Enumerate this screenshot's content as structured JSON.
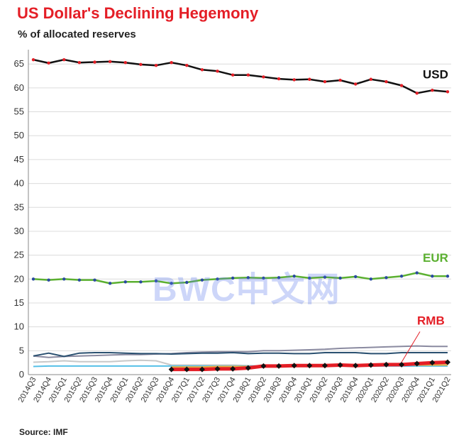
{
  "title": "US Dollar's Declining Hegemony",
  "subtitle": "% of allocated reserves",
  "source": "Source: IMF",
  "watermark": "BWC中文网",
  "chart_data": {
    "type": "line",
    "title": "US Dollar's Declining Hegemony",
    "ylabel": "% of allocated reserves",
    "xlabel": "",
    "ylim": [
      0,
      68
    ],
    "yticks": [
      0,
      5,
      10,
      15,
      20,
      25,
      30,
      35,
      40,
      45,
      50,
      55,
      60,
      65
    ],
    "grid": true,
    "categories": [
      "2014Q3",
      "2014Q4",
      "2015Q1",
      "2015Q2",
      "2015Q3",
      "2015Q4",
      "2016Q1",
      "2016Q2",
      "2016Q3",
      "2016Q4",
      "2017Q1",
      "2017Q2",
      "2017Q3",
      "2017Q4",
      "2018Q1",
      "2018Q2",
      "2018Q3",
      "2018Q4",
      "2019Q1",
      "2019Q2",
      "2019Q3",
      "2019Q4",
      "2020Q1",
      "2020Q2",
      "2020Q3",
      "2020Q4",
      "2021Q1",
      "2021Q2"
    ],
    "series": [
      {
        "name": "USD",
        "color": "#111111",
        "marker": "#e41e26",
        "labeled": true,
        "values": [
          65.9,
          65.2,
          65.9,
          65.3,
          65.4,
          65.5,
          65.3,
          64.9,
          64.7,
          65.3,
          64.7,
          63.8,
          63.5,
          62.7,
          62.7,
          62.3,
          61.9,
          61.7,
          61.8,
          61.3,
          61.6,
          60.8,
          61.8,
          61.3,
          60.5,
          58.9,
          59.5,
          59.2
        ]
      },
      {
        "name": "EUR",
        "color": "#5bb030",
        "marker": "#2a4aa0",
        "labeled": true,
        "values": [
          20.0,
          19.8,
          20.0,
          19.8,
          19.8,
          19.1,
          19.4,
          19.4,
          19.6,
          19.1,
          19.3,
          19.8,
          20.0,
          20.2,
          20.3,
          20.2,
          20.3,
          20.6,
          20.2,
          20.4,
          20.2,
          20.5,
          20.0,
          20.3,
          20.6,
          21.3,
          20.6,
          20.6
        ]
      },
      {
        "name": "RMB",
        "color": "#e41e26",
        "marker": "#111111",
        "labeled": true,
        "start_index": 9,
        "values": [
          null,
          null,
          null,
          null,
          null,
          null,
          null,
          null,
          null,
          1.1,
          1.1,
          1.1,
          1.2,
          1.2,
          1.4,
          1.8,
          1.8,
          1.9,
          1.9,
          1.9,
          2.0,
          1.9,
          2.0,
          2.1,
          2.1,
          2.3,
          2.5,
          2.6
        ]
      },
      {
        "name": "",
        "color": "#8a8aa0",
        "values": [
          3.9,
          3.6,
          3.8,
          3.9,
          4.0,
          4.1,
          4.2,
          4.2,
          4.3,
          4.4,
          4.6,
          4.7,
          4.8,
          4.8,
          4.8,
          5.0,
          5.0,
          5.1,
          5.2,
          5.3,
          5.5,
          5.6,
          5.7,
          5.8,
          5.9,
          6.0,
          5.9,
          5.9
        ]
      },
      {
        "name": "",
        "color": "#2a5070",
        "values": [
          3.9,
          4.5,
          3.8,
          4.5,
          4.6,
          4.6,
          4.5,
          4.4,
          4.4,
          4.3,
          4.4,
          4.5,
          4.5,
          4.6,
          4.4,
          4.5,
          4.5,
          4.4,
          4.4,
          4.6,
          4.6,
          4.6,
          4.4,
          4.4,
          4.6,
          4.6,
          4.6,
          4.6
        ]
      },
      {
        "name": "",
        "color": "#c8c8c8",
        "values": [
          2.6,
          2.7,
          2.9,
          2.7,
          2.7,
          2.7,
          2.9,
          3.0,
          2.9,
          2.0,
          2.0,
          2.0,
          2.0,
          2.0,
          1.9,
          1.8,
          1.9,
          2.0,
          1.9,
          1.9,
          1.9,
          1.9,
          1.9,
          1.9,
          2.0,
          2.2,
          2.2,
          2.2
        ]
      },
      {
        "name": "",
        "color": "#55c0e8",
        "values": [
          1.7,
          1.8,
          1.8,
          1.8,
          1.8,
          1.8,
          1.8,
          1.8,
          1.8,
          1.8,
          1.8,
          1.8,
          1.8,
          1.8,
          1.8,
          1.8,
          1.8,
          1.8,
          1.8,
          1.8,
          1.8,
          1.8,
          1.8,
          1.8,
          1.8,
          1.8,
          1.8,
          1.8
        ]
      },
      {
        "name": "",
        "color": "#e8b040",
        "values": [
          null,
          null,
          null,
          null,
          null,
          null,
          null,
          null,
          null,
          1.6,
          1.6,
          1.6,
          1.7,
          1.7,
          1.7,
          1.7,
          1.8,
          1.8,
          1.8,
          1.9,
          1.9,
          1.9,
          1.9,
          1.9,
          2.0,
          2.0,
          2.0,
          2.0
        ]
      }
    ]
  }
}
